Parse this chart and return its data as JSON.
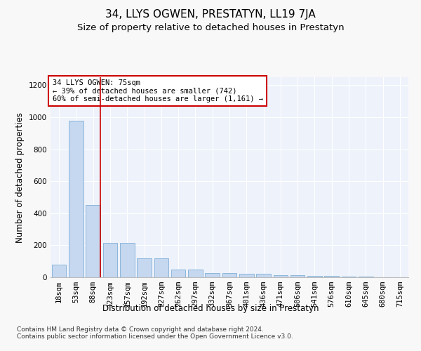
{
  "title": "34, LLYS OGWEN, PRESTATYN, LL19 7JA",
  "subtitle": "Size of property relative to detached houses in Prestatyn",
  "xlabel": "Distribution of detached houses by size in Prestatyn",
  "ylabel": "Number of detached properties",
  "categories": [
    "18sqm",
    "53sqm",
    "88sqm",
    "123sqm",
    "157sqm",
    "192sqm",
    "227sqm",
    "262sqm",
    "297sqm",
    "332sqm",
    "367sqm",
    "401sqm",
    "436sqm",
    "471sqm",
    "506sqm",
    "541sqm",
    "576sqm",
    "610sqm",
    "645sqm",
    "680sqm",
    "715sqm"
  ],
  "values": [
    80,
    980,
    450,
    215,
    215,
    120,
    120,
    50,
    50,
    25,
    25,
    20,
    20,
    15,
    15,
    8,
    8,
    5,
    3,
    0,
    0
  ],
  "bar_color": "#c5d8f0",
  "bar_edge_color": "#7fafd6",
  "vline_color": "#cc0000",
  "vline_index": 2,
  "annotation_text": "34 LLYS OGWEN: 75sqm\n← 39% of detached houses are smaller (742)\n60% of semi-detached houses are larger (1,161) →",
  "annotation_box_facecolor": "#ffffff",
  "annotation_box_edgecolor": "#cc0000",
  "ylim": [
    0,
    1250
  ],
  "yticks": [
    0,
    200,
    400,
    600,
    800,
    1000,
    1200
  ],
  "plot_bg_color": "#eef2fb",
  "fig_bg_color": "#f8f8f8",
  "footer": "Contains HM Land Registry data © Crown copyright and database right 2024.\nContains public sector information licensed under the Open Government Licence v3.0.",
  "title_fontsize": 11,
  "subtitle_fontsize": 9.5,
  "ylabel_fontsize": 8.5,
  "xlabel_fontsize": 8.5,
  "tick_fontsize": 7.5,
  "annotation_fontsize": 7.5,
  "footer_fontsize": 6.5
}
